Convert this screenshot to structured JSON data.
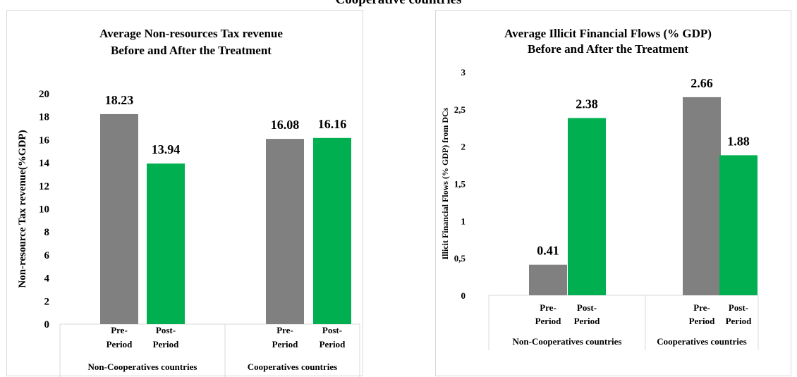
{
  "banner_title": "Cooperative countries",
  "chart_data": [
    {
      "type": "bar",
      "title": "Average Non-resources Tax revenue",
      "subtitle": "Before and After the Treatment",
      "ylabel": "Non-resource Tax revenue(%GDP)",
      "ylim": [
        0,
        20
      ],
      "yticks": [
        "0",
        "2",
        "4",
        "6",
        "8",
        "10",
        "12",
        "14",
        "16",
        "18",
        "20"
      ],
      "groups": [
        "Non-Cooperatives countries",
        "Cooperatives countries"
      ],
      "categories": [
        "Pre-Period",
        "Post-Period"
      ],
      "category_lines": [
        [
          "Pre-",
          "Period"
        ],
        [
          "Post-",
          "Period"
        ]
      ],
      "series": [
        {
          "values": [
            18.23,
            16.08
          ],
          "color": "#808080"
        },
        {
          "values": [
            13.94,
            16.16
          ],
          "color": "#00b050"
        }
      ],
      "labels": [
        [
          "18.23",
          "13.94"
        ],
        [
          "16.08",
          "16.16"
        ]
      ],
      "grid": false,
      "legend": "none"
    },
    {
      "type": "bar",
      "title": "Average Illicit Financial Flows (% GDP)",
      "subtitle": "Before and After the Treatment",
      "ylabel": "Illicit Financial Flows (% GDP) from DCs",
      "ylim": [
        0,
        3
      ],
      "yticks": [
        "0",
        "0,5",
        "1",
        "1,5",
        "2",
        "2,5",
        "3"
      ],
      "groups": [
        "Non-Cooperatives countries",
        "Cooperatives countries"
      ],
      "categories": [
        "Pre-Period",
        "Post-Period"
      ],
      "category_lines": [
        [
          "Pre-",
          "Period"
        ],
        [
          "Post-",
          "Period"
        ]
      ],
      "series": [
        {
          "values": [
            0.41,
            2.66
          ],
          "color": "#808080"
        },
        {
          "values": [
            2.38,
            1.88
          ],
          "color": "#00b050"
        }
      ],
      "labels": [
        [
          "0.41",
          "2.38"
        ],
        [
          "2.66",
          "1.88"
        ]
      ],
      "grid": false,
      "legend": "none"
    }
  ]
}
